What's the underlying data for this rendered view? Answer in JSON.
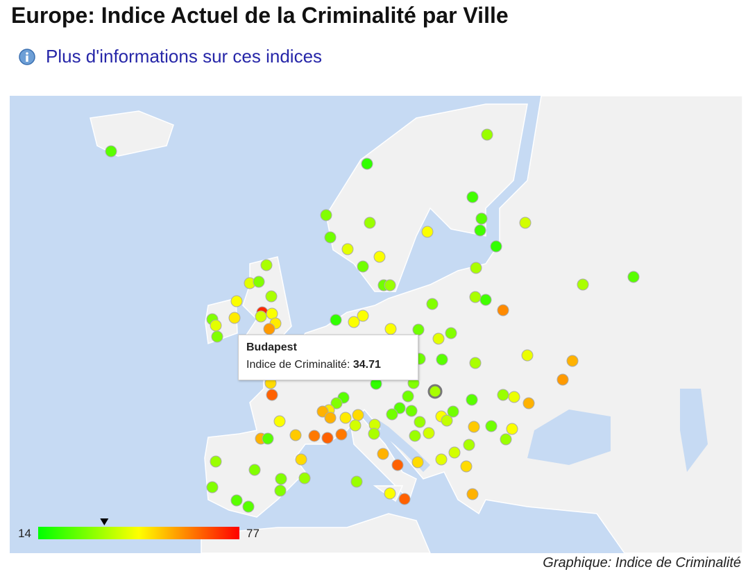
{
  "header": {
    "title": "Europe: Indice Actuel de la Criminalité par Ville",
    "info_link": "Plus d'informations sur ces indices"
  },
  "map": {
    "color_scale": {
      "min": 14,
      "max": 77,
      "colors": [
        "#00ff00",
        "#ffff00",
        "#ff0000"
      ]
    },
    "values": [
      25,
      33,
      20,
      22,
      30,
      33,
      45,
      25,
      22,
      40,
      28,
      20,
      42,
      45,
      28,
      35,
      28,
      33,
      35,
      42,
      30,
      35,
      45,
      48,
      72,
      45,
      30,
      42,
      30,
      40,
      48,
      58,
      35,
      25,
      30,
      35,
      22,
      60,
      20,
      45,
      45,
      45,
      28,
      30,
      42,
      43,
      55,
      58,
      35,
      25,
      28,
      50,
      65,
      20,
      30,
      25,
      33,
      43,
      55,
      28,
      25,
      28,
      28,
      33,
      45,
      38,
      28,
      52,
      28,
      45,
      25,
      30,
      48,
      55,
      48,
      50,
      55,
      40,
      40,
      35,
      45,
      52,
      62,
      65,
      62,
      55,
      25,
      55,
      65,
      50,
      40,
      33,
      42,
      40,
      35,
      33,
      50,
      50,
      33,
      30,
      30,
      33,
      30,
      30,
      25,
      25,
      33,
      45,
      65,
      55
    ],
    "tooltip": {
      "city": "Budapest",
      "label": "Indice de Criminalité:",
      "value": 34.71
    }
  },
  "footer": {
    "caption": "Graphique: Indice de Criminalité"
  }
}
